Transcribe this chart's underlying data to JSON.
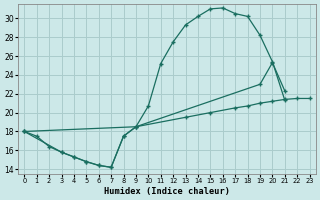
{
  "xlabel": "Humidex (Indice chaleur)",
  "bg_color": "#cce8e8",
  "grid_color": "#aacccc",
  "line_color": "#1a6e60",
  "xlim": [
    -0.5,
    23.5
  ],
  "ylim": [
    13.5,
    31.5
  ],
  "xticks": [
    0,
    1,
    2,
    3,
    4,
    5,
    6,
    7,
    8,
    9,
    10,
    11,
    12,
    13,
    14,
    15,
    16,
    17,
    18,
    19,
    20,
    21,
    22,
    23
  ],
  "yticks": [
    14,
    16,
    18,
    20,
    22,
    24,
    26,
    28,
    30
  ],
  "curve1_x": [
    0,
    1,
    2,
    3,
    4,
    5,
    6,
    7,
    8,
    9,
    10,
    11,
    12,
    13,
    14,
    15,
    16,
    17,
    18,
    19,
    20,
    21
  ],
  "curve1_y": [
    18,
    17.5,
    16.4,
    15.8,
    15.3,
    14.8,
    14.4,
    14.2,
    17.5,
    18.5,
    20.7,
    25.2,
    27.5,
    29.3,
    30.2,
    31.0,
    31.1,
    30.5,
    30.2,
    28.2,
    25.4,
    21.3
  ],
  "curve2_x": [
    0,
    3,
    4,
    5,
    6,
    7,
    8,
    9,
    19,
    20,
    21
  ],
  "curve2_y": [
    18,
    15.8,
    15.3,
    14.8,
    14.4,
    14.2,
    17.5,
    18.5,
    23.0,
    25.3,
    22.3
  ],
  "curve3_x": [
    0,
    9,
    13,
    15,
    17,
    18,
    19,
    20,
    21,
    22,
    23
  ],
  "curve3_y": [
    18,
    18.5,
    19.5,
    20.0,
    20.5,
    20.7,
    21.0,
    21.2,
    21.4,
    21.5,
    21.5
  ]
}
